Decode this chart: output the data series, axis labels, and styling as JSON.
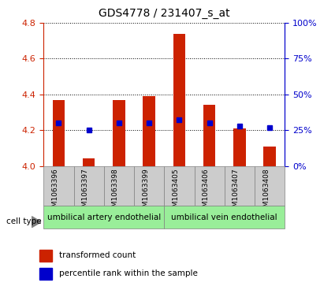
{
  "title": "GDS4778 / 231407_s_at",
  "samples": [
    "GSM1063396",
    "GSM1063397",
    "GSM1063398",
    "GSM1063399",
    "GSM1063405",
    "GSM1063406",
    "GSM1063407",
    "GSM1063408"
  ],
  "transformed_count": [
    4.37,
    4.04,
    4.37,
    4.39,
    4.74,
    4.34,
    4.21,
    4.11
  ],
  "percentile_rank": [
    30,
    25,
    30,
    30,
    32,
    30,
    28,
    27
  ],
  "ylim": [
    4.0,
    4.8
  ],
  "yticks": [
    4.0,
    4.2,
    4.4,
    4.6,
    4.8
  ],
  "y2lim": [
    0,
    100
  ],
  "y2ticks": [
    0,
    25,
    50,
    75,
    100
  ],
  "y2ticklabels": [
    "0%",
    "25%",
    "50%",
    "75%",
    "100%"
  ],
  "bar_color": "#cc2200",
  "dot_color": "#0000cc",
  "group1_label": "umbilical artery endothelial",
  "group2_label": "umbilical vein endothelial",
  "group_bg_color": "#99ee99",
  "cell_type_label": "cell type",
  "legend_red": "transformed count",
  "legend_blue": "percentile rank within the sample",
  "bar_width": 0.4,
  "left_tick_color": "#cc2200",
  "right_tick_color": "#0000cc",
  "box_color": "#cccccc"
}
